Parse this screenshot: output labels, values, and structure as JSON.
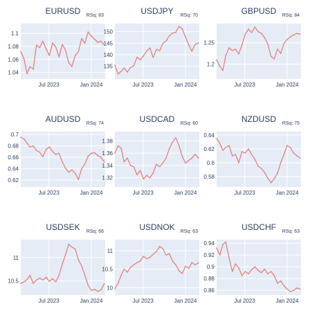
{
  "chart_data": [
    {
      "type": "line",
      "title": "EURUSD",
      "annotation": "RSq: 83",
      "x_ticks": [
        "Jul 2023",
        "Jan 2024"
      ],
      "y_ticks": [
        "1.04",
        "1.06",
        "1.08",
        "1.1"
      ],
      "ylim": [
        1.03,
        1.115
      ],
      "xlim": [
        "2023-03-01",
        "2024-03-01"
      ],
      "grid": true,
      "line_color": "#e4807e",
      "series": [
        {
          "x": [
            "2023-03-01",
            "2023-03-15",
            "2023-03-28",
            "2023-04-10",
            "2023-04-24",
            "2023-05-08",
            "2023-05-22",
            "2023-06-05",
            "2023-06-19",
            "2023-07-03",
            "2023-07-17",
            "2023-07-31",
            "2023-08-14",
            "2023-08-28",
            "2023-09-11",
            "2023-09-25",
            "2023-10-09",
            "2023-10-23",
            "2023-11-06",
            "2023-11-20",
            "2023-12-04",
            "2023-12-18",
            "2024-01-01",
            "2024-01-15",
            "2024-01-29",
            "2024-02-12",
            "2024-02-26"
          ],
          "values": [
            1.072,
            1.061,
            1.038,
            1.049,
            1.045,
            1.082,
            1.078,
            1.088,
            1.076,
            1.066,
            1.085,
            1.079,
            1.064,
            1.083,
            1.074,
            1.055,
            1.049,
            1.066,
            1.072,
            1.092,
            1.085,
            1.102,
            1.096,
            1.091,
            1.086,
            1.088,
            1.082
          ]
        }
      ]
    },
    {
      "type": "line",
      "title": "USDJPY",
      "annotation": "RSq: 70",
      "x_ticks": [
        "Jul 2023",
        "Jan 2024"
      ],
      "y_ticks": [
        "135",
        "140",
        "145",
        "150"
      ],
      "ylim": [
        129.5,
        153.5
      ],
      "xlim": [
        "2023-03-01",
        "2024-03-01"
      ],
      "grid": true,
      "line_color": "#e4807e",
      "series": [
        {
          "x": [
            "2023-03-01",
            "2023-03-15",
            "2023-03-28",
            "2023-04-10",
            "2023-04-24",
            "2023-05-08",
            "2023-05-22",
            "2023-06-05",
            "2023-06-19",
            "2023-07-03",
            "2023-07-17",
            "2023-07-31",
            "2023-08-14",
            "2023-08-28",
            "2023-09-11",
            "2023-09-25",
            "2023-10-09",
            "2023-10-23",
            "2023-11-06",
            "2023-11-20",
            "2023-12-04",
            "2023-12-18",
            "2024-01-01",
            "2024-01-15",
            "2024-01-29",
            "2024-02-12",
            "2024-02-26"
          ],
          "values": [
            135.5,
            131.6,
            132.8,
            134.2,
            132.5,
            134.5,
            135.2,
            138.9,
            137.8,
            139.5,
            141.6,
            142.9,
            138.8,
            142.3,
            141.7,
            144.9,
            146.0,
            148.2,
            149.4,
            149.7,
            152.3,
            151.2,
            147.8,
            144.3,
            141.5,
            144.5,
            145.1
          ]
        }
      ]
    },
    {
      "type": "line",
      "title": "GBPUSD",
      "annotation": "RSq: 84",
      "x_ticks": [
        "Jul 2023",
        "Jan 2024"
      ],
      "y_ticks": [
        "1.2",
        "1.25"
      ],
      "ylim": [
        1.165,
        1.295
      ],
      "xlim": [
        "2023-03-01",
        "2024-03-01"
      ],
      "grid": true,
      "line_color": "#e4807e",
      "series": [
        {
          "x": [
            "2023-03-01",
            "2023-03-15",
            "2023-03-28",
            "2023-04-10",
            "2023-04-24",
            "2023-05-08",
            "2023-05-22",
            "2023-06-05",
            "2023-06-19",
            "2023-07-03",
            "2023-07-17",
            "2023-07-31",
            "2023-08-14",
            "2023-08-28",
            "2023-09-11",
            "2023-09-25",
            "2023-10-09",
            "2023-10-23",
            "2023-11-06",
            "2023-11-20",
            "2023-12-04",
            "2023-12-18",
            "2024-01-01",
            "2024-01-15",
            "2024-01-29",
            "2024-02-12",
            "2024-02-26"
          ],
          "values": [
            1.21,
            1.195,
            1.185,
            1.22,
            1.238,
            1.232,
            1.235,
            1.224,
            1.245,
            1.27,
            1.282,
            1.274,
            1.287,
            1.276,
            1.272,
            1.262,
            1.247,
            1.218,
            1.212,
            1.235,
            1.225,
            1.248,
            1.258,
            1.264,
            1.268,
            1.272,
            1.27
          ]
        }
      ]
    },
    {
      "type": "line",
      "title": "AUDUSD",
      "annotation": "RSq: 74",
      "x_ticks": [
        "Jul 2023",
        "Jan 2024"
      ],
      "y_ticks": [
        "0.62",
        "0.64",
        "0.66",
        "0.68",
        "0.7"
      ],
      "ylim": [
        0.608,
        0.705
      ],
      "xlim": [
        "2023-03-01",
        "2024-03-01"
      ],
      "grid": true,
      "line_color": "#e4807e",
      "series": [
        {
          "x": [
            "2023-03-01",
            "2023-03-15",
            "2023-03-28",
            "2023-04-10",
            "2023-04-24",
            "2023-05-08",
            "2023-05-22",
            "2023-06-05",
            "2023-06-19",
            "2023-07-03",
            "2023-07-17",
            "2023-07-31",
            "2023-08-14",
            "2023-08-28",
            "2023-09-11",
            "2023-09-25",
            "2023-10-09",
            "2023-10-23",
            "2023-11-06",
            "2023-11-20",
            "2023-12-04",
            "2023-12-18",
            "2024-01-01",
            "2024-01-15",
            "2024-01-29",
            "2024-02-12",
            "2024-02-26"
          ],
          "values": [
            0.695,
            0.692,
            0.685,
            0.678,
            0.68,
            0.672,
            0.669,
            0.661,
            0.674,
            0.678,
            0.67,
            0.665,
            0.667,
            0.652,
            0.641,
            0.634,
            0.638,
            0.632,
            0.621,
            0.64,
            0.648,
            0.662,
            0.667,
            0.668,
            0.663,
            0.66,
            0.652
          ]
        }
      ]
    },
    {
      "type": "line",
      "title": "USDCAD",
      "annotation": "RSq: 60",
      "x_ticks": [
        "Jul 2023",
        "Jan 2024"
      ],
      "y_ticks": [
        "1.32",
        "1.34",
        "1.36",
        "1.38"
      ],
      "ylim": [
        1.305,
        1.395
      ],
      "xlim": [
        "2023-03-01",
        "2024-03-01"
      ],
      "grid": true,
      "line_color": "#e4807e",
      "series": [
        {
          "x": [
            "2023-03-01",
            "2023-03-15",
            "2023-03-28",
            "2023-04-10",
            "2023-04-24",
            "2023-05-08",
            "2023-05-22",
            "2023-06-05",
            "2023-06-19",
            "2023-07-03",
            "2023-07-17",
            "2023-07-31",
            "2023-08-14",
            "2023-08-28",
            "2023-09-11",
            "2023-09-25",
            "2023-10-09",
            "2023-10-23",
            "2023-11-06",
            "2023-11-20",
            "2023-12-04",
            "2023-12-18",
            "2024-01-01",
            "2024-01-15",
            "2024-01-29",
            "2024-02-12",
            "2024-02-26"
          ],
          "values": [
            1.36,
            1.372,
            1.368,
            1.346,
            1.352,
            1.34,
            1.338,
            1.325,
            1.332,
            1.318,
            1.324,
            1.32,
            1.328,
            1.342,
            1.338,
            1.344,
            1.352,
            1.367,
            1.378,
            1.385,
            1.372,
            1.355,
            1.344,
            1.348,
            1.352,
            1.358,
            1.352
          ]
        }
      ]
    },
    {
      "type": "line",
      "title": "NZDUSD",
      "annotation": "RSq: 75",
      "x_ticks": [
        "Jul 2023",
        "Jan 2024"
      ],
      "y_ticks": [
        "0.58",
        "0.6",
        "0.62",
        "0.64"
      ],
      "ylim": [
        0.565,
        0.645
      ],
      "xlim": [
        "2023-03-01",
        "2024-03-01"
      ],
      "grid": true,
      "line_color": "#e4807e",
      "series": [
        {
          "x": [
            "2023-03-01",
            "2023-03-15",
            "2023-03-28",
            "2023-04-10",
            "2023-04-24",
            "2023-05-08",
            "2023-05-22",
            "2023-06-05",
            "2023-06-19",
            "2023-07-03",
            "2023-07-17",
            "2023-07-31",
            "2023-08-14",
            "2023-08-28",
            "2023-09-11",
            "2023-09-25",
            "2023-10-09",
            "2023-10-23",
            "2023-11-06",
            "2023-11-20",
            "2023-12-04",
            "2023-12-18",
            "2024-01-01",
            "2024-01-15",
            "2024-01-29",
            "2024-02-12",
            "2024-02-26"
          ],
          "values": [
            0.635,
            0.628,
            0.618,
            0.622,
            0.625,
            0.61,
            0.612,
            0.6,
            0.616,
            0.614,
            0.62,
            0.612,
            0.605,
            0.595,
            0.592,
            0.586,
            0.578,
            0.571,
            0.577,
            0.585,
            0.6,
            0.612,
            0.625,
            0.622,
            0.614,
            0.61,
            0.607
          ]
        }
      ]
    },
    {
      "type": "line",
      "title": "USDSEK",
      "annotation": "RSq: 66",
      "x_ticks": [
        "Jul 2023",
        "Jan 2024"
      ],
      "y_ticks": [
        "10.5",
        "11"
      ],
      "ylim": [
        10.2,
        11.38
      ],
      "xlim": [
        "2023-03-01",
        "2024-03-01"
      ],
      "grid": true,
      "line_color": "#e4807e",
      "series": [
        {
          "x": [
            "2023-03-01",
            "2023-03-15",
            "2023-03-28",
            "2023-04-10",
            "2023-04-24",
            "2023-05-08",
            "2023-05-22",
            "2023-06-05",
            "2023-06-19",
            "2023-07-03",
            "2023-07-17",
            "2023-07-31",
            "2023-08-14",
            "2023-08-28",
            "2023-09-11",
            "2023-09-25",
            "2023-10-09",
            "2023-10-23",
            "2023-11-06",
            "2023-11-20",
            "2023-12-04",
            "2023-12-18",
            "2024-01-01",
            "2024-01-15",
            "2024-01-29",
            "2024-02-12",
            "2024-02-26"
          ],
          "values": [
            10.45,
            10.48,
            10.53,
            10.62,
            10.45,
            10.52,
            10.56,
            10.52,
            10.58,
            10.49,
            10.55,
            10.48,
            10.62,
            10.86,
            11.06,
            11.28,
            11.22,
            11.18,
            10.95,
            10.82,
            10.62,
            10.41,
            10.3,
            10.32,
            10.28,
            10.31,
            10.44
          ]
        }
      ]
    },
    {
      "type": "line",
      "title": "USDNOK",
      "annotation": "RSq: 63",
      "x_ticks": [
        "Jul 2023",
        "Jan 2024"
      ],
      "y_ticks": [
        "10",
        "10.5",
        "11"
      ],
      "ylim": [
        9.8,
        11.3
      ],
      "xlim": [
        "2023-03-01",
        "2024-03-01"
      ],
      "grid": true,
      "line_color": "#e4807e",
      "series": [
        {
          "x": [
            "2023-03-01",
            "2023-03-15",
            "2023-03-28",
            "2023-04-10",
            "2023-04-24",
            "2023-05-08",
            "2023-05-22",
            "2023-06-05",
            "2023-06-19",
            "2023-07-03",
            "2023-07-17",
            "2023-07-31",
            "2023-08-14",
            "2023-08-28",
            "2023-09-11",
            "2023-09-25",
            "2023-10-09",
            "2023-10-23",
            "2023-11-06",
            "2023-11-20",
            "2023-12-04",
            "2023-12-18",
            "2024-01-01",
            "2024-01-15",
            "2024-01-29",
            "2024-02-12",
            "2024-02-26"
          ],
          "values": [
            9.97,
            10.12,
            10.33,
            10.5,
            10.42,
            10.55,
            10.62,
            10.68,
            10.72,
            10.85,
            10.78,
            10.82,
            10.9,
            10.98,
            11.12,
            11.06,
            10.88,
            10.92,
            10.72,
            10.62,
            10.46,
            10.38,
            10.58,
            10.52,
            10.68,
            10.62,
            10.67
          ]
        }
      ]
    },
    {
      "type": "line",
      "title": "USDCHF",
      "annotation": "RSq: 63",
      "x_ticks": [
        "Jul 2023",
        "Jan 2024"
      ],
      "y_ticks": [
        "0.86",
        "0.88",
        "0.9",
        "0.92",
        "0.94"
      ],
      "ylim": [
        0.852,
        0.946
      ],
      "xlim": [
        "2023-03-01",
        "2024-03-01"
      ],
      "grid": true,
      "line_color": "#e4807e",
      "series": [
        {
          "x": [
            "2023-03-01",
            "2023-03-15",
            "2023-03-28",
            "2023-04-10",
            "2023-04-24",
            "2023-05-08",
            "2023-05-22",
            "2023-06-05",
            "2023-06-19",
            "2023-07-03",
            "2023-07-17",
            "2023-07-31",
            "2023-08-14",
            "2023-08-28",
            "2023-09-11",
            "2023-09-25",
            "2023-10-09",
            "2023-10-23",
            "2023-11-06",
            "2023-11-20",
            "2023-12-04",
            "2023-12-18",
            "2024-01-01",
            "2024-01-15",
            "2024-01-29",
            "2024-02-12",
            "2024-02-26"
          ],
          "values": [
            0.932,
            0.92,
            0.938,
            0.942,
            0.915,
            0.892,
            0.905,
            0.898,
            0.885,
            0.892,
            0.888,
            0.895,
            0.9,
            0.894,
            0.89,
            0.896,
            0.888,
            0.892,
            0.885,
            0.872,
            0.876,
            0.868,
            0.862,
            0.858,
            0.86,
            0.864,
            0.862
          ]
        }
      ]
    }
  ]
}
